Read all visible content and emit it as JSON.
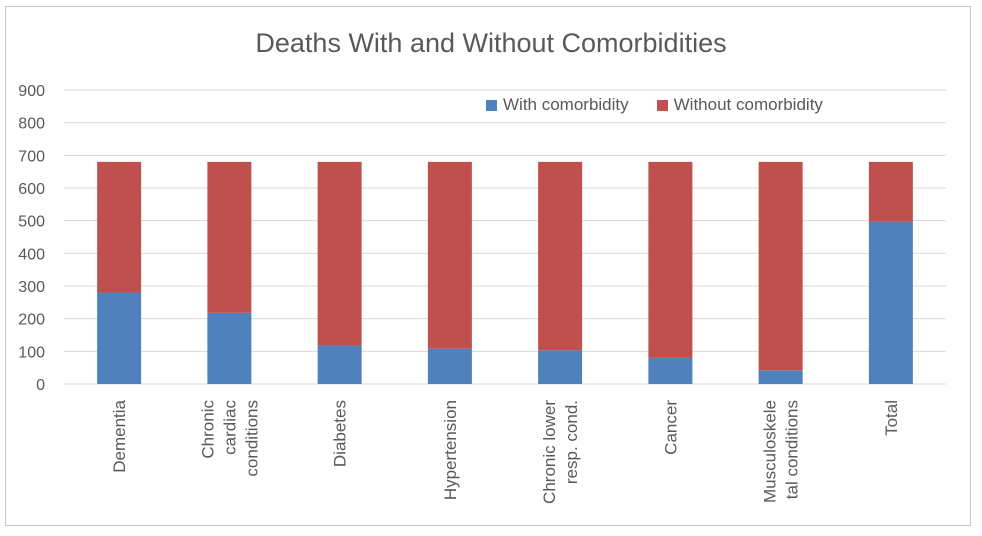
{
  "colors": {
    "with_comorbidity": "#4f81bd",
    "without_comorbidity": "#c0504d",
    "grid": "#d9d9d9",
    "text": "#595959"
  },
  "chart_data": {
    "type": "bar",
    "stacked": true,
    "title": "Deaths With and Without Comorbidities",
    "xlabel": "",
    "ylabel": "",
    "ylim": [
      0,
      900
    ],
    "yticks": [
      0,
      100,
      200,
      300,
      400,
      500,
      600,
      700,
      800,
      900
    ],
    "grid": true,
    "legend_position": "top-right",
    "categories": [
      [
        "Dementia"
      ],
      [
        "Chronic",
        "cardiac",
        "conditions"
      ],
      [
        "Diabetes"
      ],
      [
        "Hypertension"
      ],
      [
        "Chronic lower",
        "resp. cond."
      ],
      [
        "Cancer"
      ],
      [
        "Musculoskele",
        "tal conditions"
      ],
      [
        "Total"
      ]
    ],
    "series": [
      {
        "name": "With comorbidity",
        "values": [
          280,
          218,
          118,
          108,
          103,
          80,
          42,
          497
        ]
      },
      {
        "name": "Without comorbidity",
        "values": [
          400,
          462,
          562,
          572,
          577,
          600,
          638,
          183
        ]
      }
    ]
  }
}
